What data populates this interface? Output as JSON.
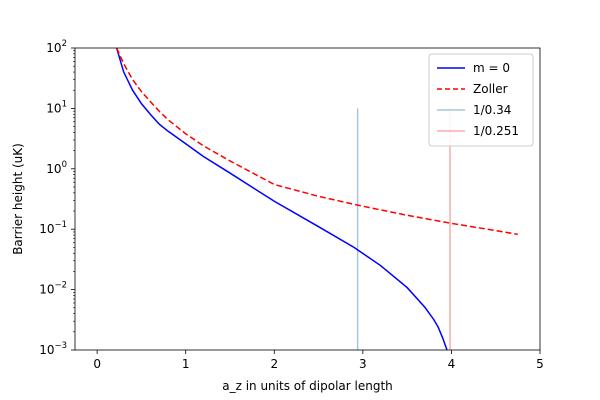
{
  "chart_data": {
    "type": "line",
    "xlabel": "a_z in units of dipolar length",
    "ylabel": "Barrier height (uK)",
    "xlim": [
      -0.25,
      5.0
    ],
    "ylim": [
      0.001,
      100
    ],
    "yscale": "log",
    "x_ticks": [
      0,
      1,
      2,
      3,
      4,
      5
    ],
    "x_tick_labels": [
      "0",
      "1",
      "2",
      "3",
      "4",
      "5"
    ],
    "y_ticks": [
      0.001,
      0.01,
      0.1,
      1,
      10,
      100
    ],
    "y_tick_labels": [
      {
        "base": "10",
        "exp": "−3"
      },
      {
        "base": "10",
        "exp": "−2"
      },
      {
        "base": "10",
        "exp": "−1"
      },
      {
        "base": "10",
        "exp": "0"
      },
      {
        "base": "10",
        "exp": "1"
      },
      {
        "base": "10",
        "exp": "2"
      }
    ],
    "grid": false,
    "legend_position": "top-right",
    "series": [
      {
        "name": "m = 0",
        "color": "#0000ff",
        "style": "solid",
        "x": [
          0.22,
          0.3,
          0.4,
          0.5,
          0.6,
          0.7,
          0.8,
          1.0,
          1.2,
          1.5,
          2.0,
          2.5,
          2.9,
          3.2,
          3.5,
          3.7,
          3.8,
          3.85,
          3.9,
          3.95
        ],
        "y": [
          100,
          40,
          20,
          12,
          8,
          5.5,
          4.2,
          2.6,
          1.6,
          0.85,
          0.29,
          0.11,
          0.05,
          0.025,
          0.0108,
          0.0051,
          0.0032,
          0.0024,
          0.0016,
          0.001
        ]
      },
      {
        "name": "Zoller",
        "color": "#ff0000",
        "style": "dashed",
        "x": [
          0.22,
          0.3,
          0.4,
          0.5,
          0.6,
          0.7,
          0.8,
          1.0,
          1.2,
          1.5,
          2.0,
          2.5,
          3.0,
          3.5,
          4.0,
          4.5,
          4.75
        ],
        "y": [
          100,
          55,
          30,
          19,
          13,
          9,
          6.5,
          3.8,
          2.4,
          1.35,
          0.55,
          0.35,
          0.24,
          0.17,
          0.125,
          0.095,
          0.082
        ]
      }
    ],
    "vlines": [
      {
        "name": "1/0.34",
        "x": 2.941,
        "ymin": 0.001,
        "ymax": 10,
        "color": "#a9c6d6"
      },
      {
        "name": "1/0.251",
        "x": 3.984,
        "ymin": 0.001,
        "ymax": 10,
        "color": "#ffaaaa"
      }
    ]
  }
}
